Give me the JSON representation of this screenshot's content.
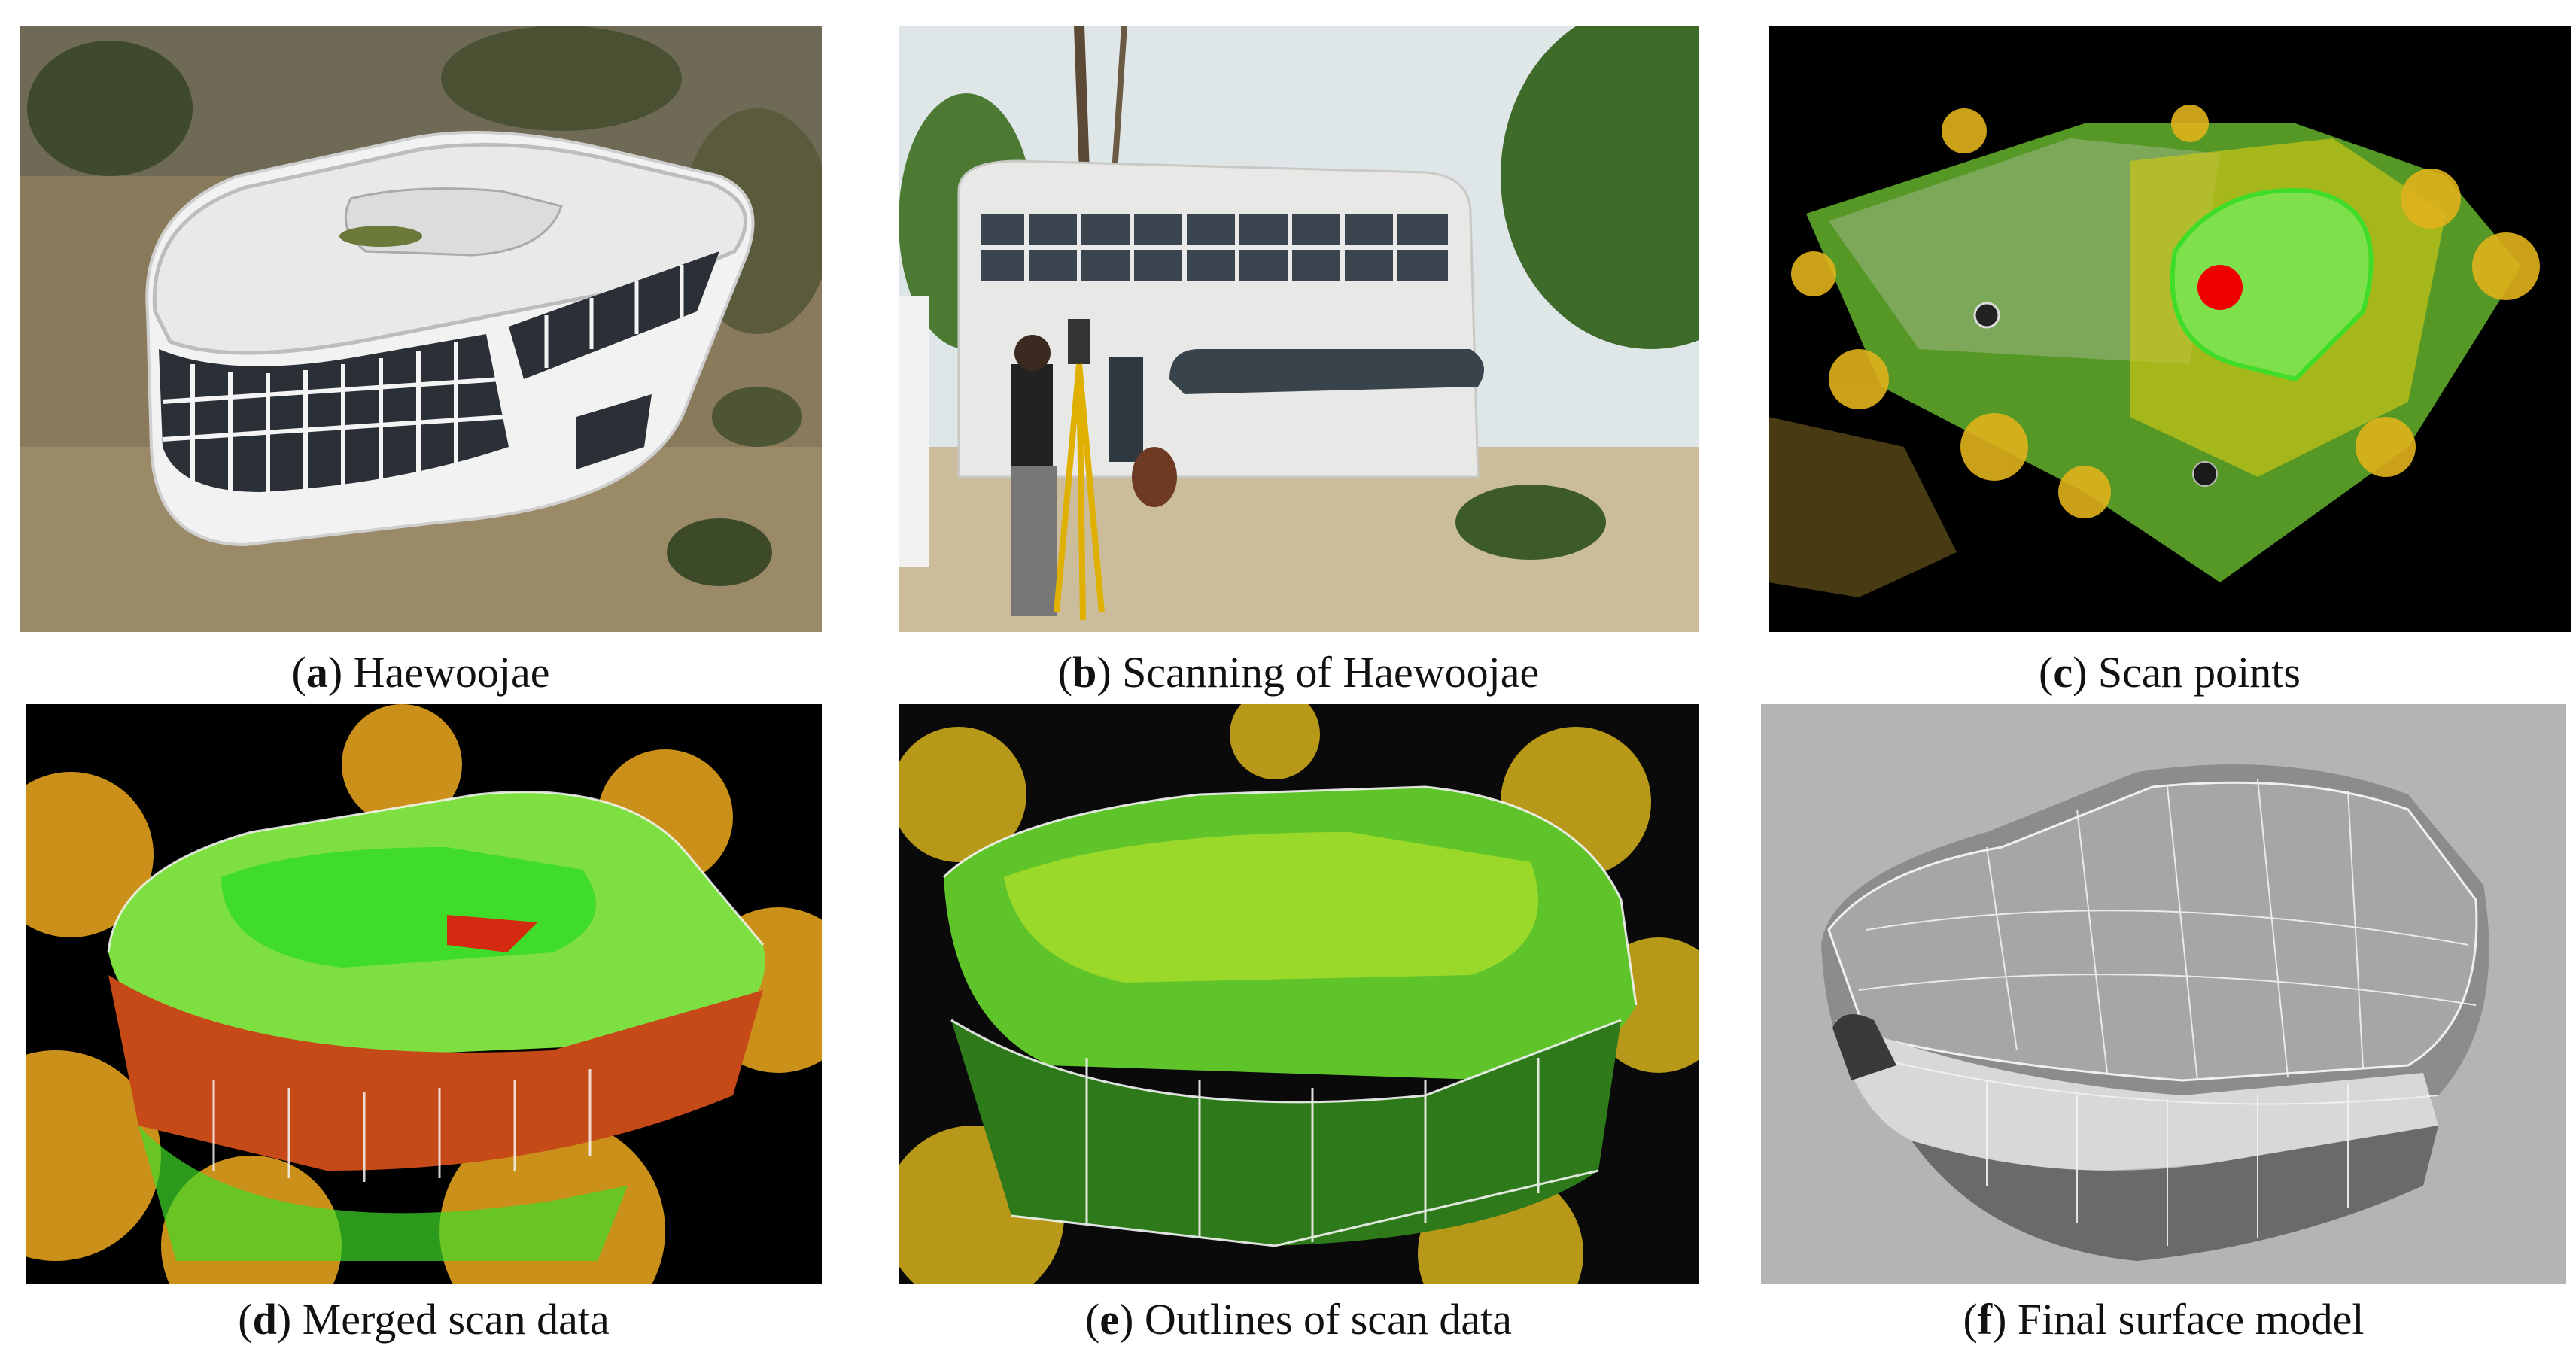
{
  "panels": [
    {
      "letter": "a",
      "caption": ") Haewoojae"
    },
    {
      "letter": "b",
      "caption": ") Scanning of Haewoojae"
    },
    {
      "letter": "c",
      "caption": ") Scan points"
    },
    {
      "letter": "d",
      "caption": ") Merged scan data"
    },
    {
      "letter": "e",
      "caption": ") Outlines of scan data"
    },
    {
      "letter": "f",
      "caption": ") Final surface model"
    }
  ],
  "caption_open": "(",
  "colors": {
    "scan_green": "#3fdc2a",
    "scan_yellow": "#e8d21c",
    "scan_orange": "#e07a1c",
    "scan_red": "#d42a12",
    "marker_red": "#ee0000",
    "model_bg": "#b4b4b4"
  }
}
